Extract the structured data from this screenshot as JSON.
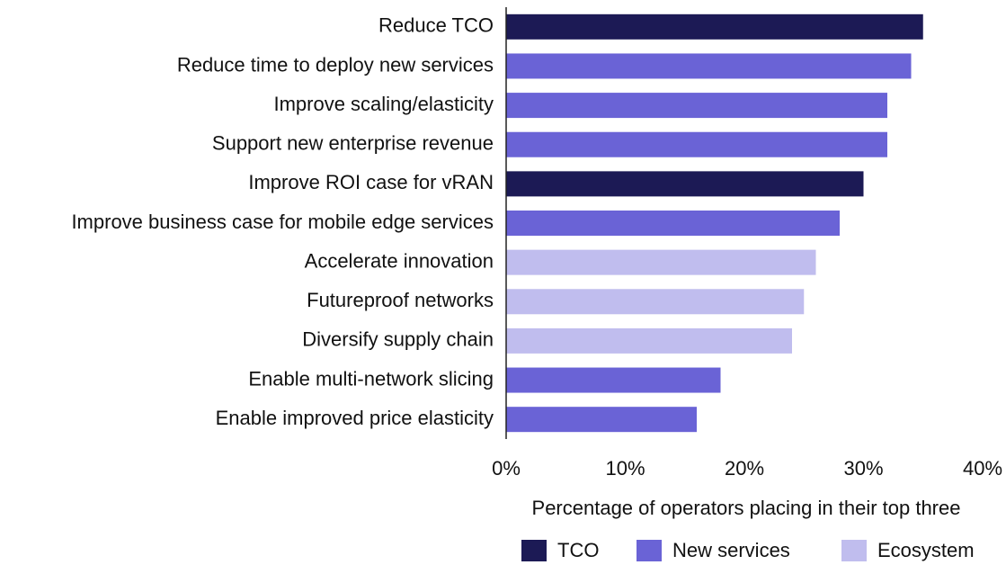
{
  "chart_data": {
    "type": "barh",
    "x_label": "Percentage of operators placing in their top three",
    "categories": [
      "Reduce TCO",
      "Reduce time to deploy new services",
      "Improve scaling/elasticity",
      "Support new enterprise revenue",
      "Improve ROI case for vRAN",
      "Improve business case for mobile edge services",
      "Accelerate innovation",
      "Futureproof networks",
      "Diversify supply chain",
      "Enable multi-network slicing",
      "Enable improved price elasticity"
    ],
    "series": [
      {
        "name": "TCO",
        "color": "#1c1a55",
        "values": [
          35,
          null,
          null,
          null,
          30,
          null,
          null,
          null,
          null,
          null,
          null
        ]
      },
      {
        "name": "New services",
        "color": "#6a63d6",
        "values": [
          null,
          34,
          32,
          32,
          null,
          28,
          null,
          null,
          null,
          18,
          16
        ]
      },
      {
        "name": "Ecosystem",
        "color": "#c0bdee",
        "values": [
          null,
          null,
          null,
          null,
          null,
          null,
          26,
          25,
          24,
          null,
          null
        ]
      }
    ],
    "xlim": [
      0,
      40
    ],
    "xticks": [
      {
        "value": 0,
        "label": "0%"
      },
      {
        "value": 10,
        "label": "10%"
      },
      {
        "value": 20,
        "label": "20%"
      },
      {
        "value": 30,
        "label": "30%"
      },
      {
        "value": 40,
        "label": "40%"
      }
    ],
    "legend": "bottom-right"
  }
}
